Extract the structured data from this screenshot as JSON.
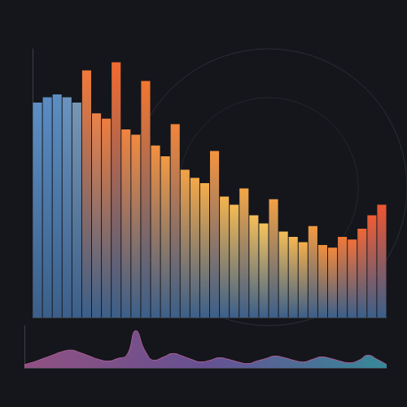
{
  "chart_data": [
    {
      "type": "bar",
      "categories": [
        null,
        null,
        null,
        null,
        null,
        null,
        null,
        null,
        null,
        null,
        null,
        null,
        null,
        null,
        null,
        null,
        null,
        null,
        null,
        null,
        null,
        null,
        null,
        null,
        null,
        null,
        null,
        null,
        null,
        null,
        null,
        null,
        null,
        null,
        null,
        null
      ],
      "values": [
        80,
        82,
        83,
        82,
        80,
        92,
        76,
        74,
        95,
        70,
        68,
        88,
        64,
        60,
        72,
        55,
        52,
        50,
        62,
        45,
        42,
        48,
        38,
        35,
        44,
        32,
        30,
        28,
        34,
        27,
        26,
        30,
        29,
        33,
        38,
        42
      ],
      "colors": [
        "#5d8fc4",
        "#5a8cc2",
        "#5b8ec3",
        "#6a93bd",
        "#7896b4",
        "#f07a3a",
        "#e9824a",
        "#ee7d3e",
        "#f26a2e",
        "#f0843f",
        "#f28a40",
        "#f3762f",
        "#f3903f",
        "#f39a42",
        "#f2863a",
        "#f4a245",
        "#f4a848",
        "#f5ad4a",
        "#f39440",
        "#f5b44e",
        "#f6ba52",
        "#f4a646",
        "#f6bf58",
        "#f7c45c",
        "#f3a043",
        "#f5bd56",
        "#f6b650",
        "#f5ae4a",
        "#f39a40",
        "#f2903d",
        "#f2883b",
        "#f07a38",
        "#f0703a",
        "#ef6636",
        "#ee5c34",
        "#ec5632"
      ],
      "ylim": [
        0,
        100
      ],
      "grid": false,
      "tick_labels": false
    },
    {
      "type": "area",
      "categories": [
        null,
        null,
        null,
        null,
        null,
        null,
        null,
        null,
        null,
        null,
        null,
        null,
        null,
        null,
        null,
        null,
        null,
        null,
        null,
        null,
        null,
        null,
        null,
        null,
        null,
        null,
        null,
        null,
        null,
        null,
        null,
        null,
        null,
        null,
        null,
        null,
        null,
        null,
        null,
        null
      ],
      "values": [
        8,
        14,
        22,
        30,
        38,
        42,
        36,
        28,
        20,
        16,
        22,
        30,
        88,
        40,
        18,
        26,
        34,
        28,
        20,
        14,
        18,
        24,
        20,
        14,
        10,
        16,
        22,
        28,
        24,
        18,
        14,
        20,
        26,
        22,
        16,
        12,
        18,
        30,
        20,
        8
      ],
      "color": "#b0609a",
      "ylim": [
        0,
        100
      ],
      "grid": false,
      "tick_labels": false
    }
  ]
}
